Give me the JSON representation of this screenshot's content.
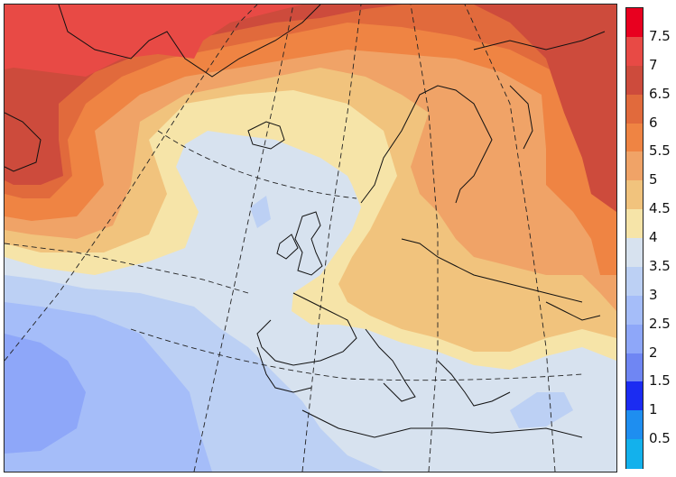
{
  "map": {
    "projection_lines": "dashed",
    "coastlines": "black"
  },
  "legend": {
    "bins": [
      {
        "label": "7.5",
        "color": "#e8001f"
      },
      {
        "label": "7",
        "color": "#e84a45"
      },
      {
        "label": "6.5",
        "color": "#cd4b3c"
      },
      {
        "label": "6",
        "color": "#e16a3c"
      },
      {
        "label": "5.5",
        "color": "#ef8443"
      },
      {
        "label": "5",
        "color": "#f0a367"
      },
      {
        "label": "4.5",
        "color": "#f1c37d"
      },
      {
        "label": "4",
        "color": "#f6e4a8"
      },
      {
        "label": "3.5",
        "color": "#d7e2ef"
      },
      {
        "label": "3",
        "color": "#bcd0f4"
      },
      {
        "label": "2.5",
        "color": "#a5bdf9"
      },
      {
        "label": "2",
        "color": "#8ea7f9"
      },
      {
        "label": "1.5",
        "color": "#6f86f3"
      },
      {
        "label": "1",
        "color": "#1b2cf2"
      },
      {
        "label": "0.5",
        "color": "#1e8ef0"
      },
      {
        "label": "",
        "color": "#13b1ec"
      }
    ]
  }
}
